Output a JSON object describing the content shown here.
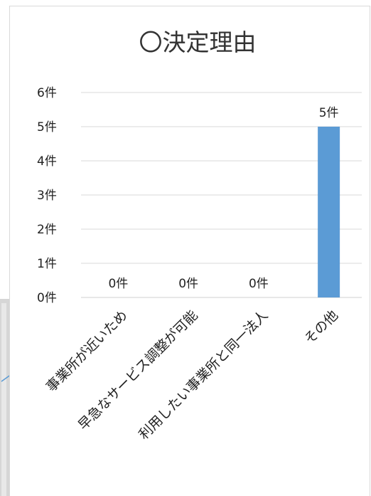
{
  "chart_data": {
    "type": "bar",
    "title": "〇決定理由",
    "categories": [
      "事業所が近いため",
      "早急なサービス調整が可能",
      "利用したい事業所と同一法人",
      "その他"
    ],
    "values": [
      0,
      0,
      0,
      5
    ],
    "value_labels": [
      "0件",
      "0件",
      "0件",
      "5件"
    ],
    "y_ticks": [
      "0件",
      "1件",
      "2件",
      "3件",
      "4件",
      "5件",
      "6件"
    ],
    "ylim": [
      0,
      6
    ],
    "grid": true,
    "legend": "none",
    "bar_color": "#5b9bd5"
  },
  "colors": {
    "bar": "#5b9bd5",
    "gridline": "#d9d9d9",
    "text": "#222222",
    "connector": "#5b9bd5"
  }
}
